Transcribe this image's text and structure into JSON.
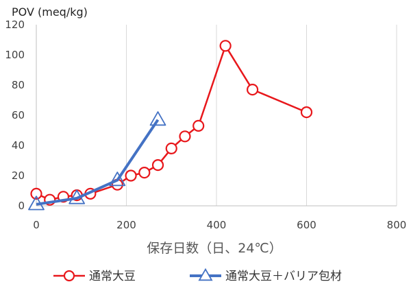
{
  "chart_data": {
    "type": "line",
    "title": "",
    "ylabel": "POV (meq/kg)",
    "xlabel": "保存日数（日、24℃）",
    "xlim": [
      0,
      800
    ],
    "ylim": [
      0,
      120
    ],
    "xticks": [
      0,
      200,
      400,
      600,
      800
    ],
    "yticks": [
      0,
      20,
      40,
      60,
      80,
      100,
      120
    ],
    "grid": "vertical",
    "legend": "bottom",
    "series": [
      {
        "name": "通常大豆",
        "color": "#e8171b",
        "marker": "circle",
        "points": [
          [
            0,
            8
          ],
          [
            30,
            4
          ],
          [
            60,
            6
          ],
          [
            90,
            7
          ],
          [
            120,
            8
          ],
          [
            180,
            14
          ],
          [
            210,
            20
          ],
          [
            240,
            22
          ],
          [
            270,
            27
          ],
          [
            300,
            38
          ],
          [
            330,
            46
          ],
          [
            360,
            53
          ],
          [
            420,
            106
          ],
          [
            480,
            77
          ],
          [
            600,
            62
          ]
        ]
      },
      {
        "name": "通常大豆＋バリア包材",
        "color": "#4472c4",
        "marker": "triangle",
        "points": [
          [
            0,
            1
          ],
          [
            90,
            5
          ],
          [
            180,
            17
          ],
          [
            270,
            57
          ]
        ]
      }
    ]
  }
}
